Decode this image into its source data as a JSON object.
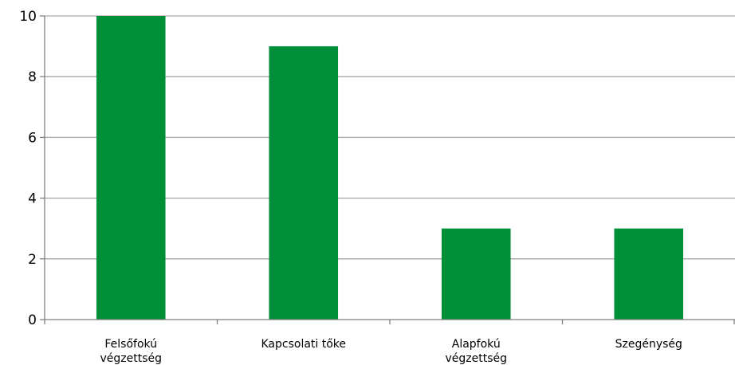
{
  "chart_data": {
    "type": "bar",
    "categories": [
      [
        "Felsőfokú",
        "végzettség"
      ],
      [
        "Kapcsolati tőke"
      ],
      [
        "Alapfokú",
        "végzettség"
      ],
      [
        "Szegénység"
      ]
    ],
    "values": [
      10,
      9,
      3,
      3
    ],
    "ylim": [
      0,
      10
    ],
    "yticks": [
      "0",
      "2",
      "4",
      "6",
      "8",
      "10"
    ],
    "grid": true,
    "bar_color": "#008f39",
    "grid_color": "#a6a6a6",
    "axis_color": "#7f7f7f"
  }
}
